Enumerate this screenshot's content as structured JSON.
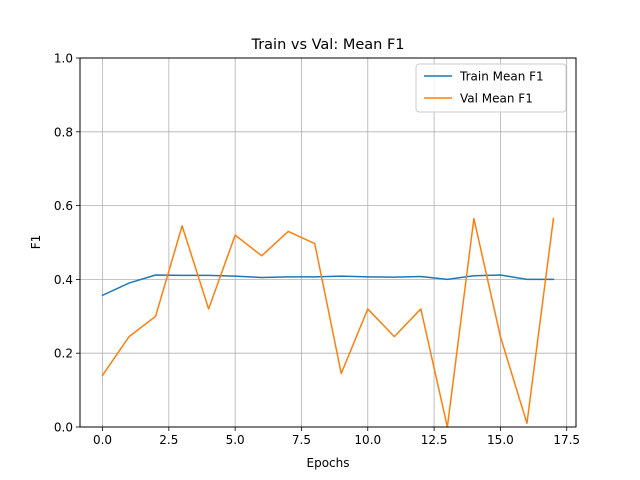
{
  "chart_data": {
    "type": "line",
    "title": "Train vs Val: Mean F1",
    "xlabel": "Epochs",
    "ylabel": "F1",
    "xlim": [
      -0.85,
      17.85
    ],
    "ylim": [
      0.0,
      1.0
    ],
    "xticks": [
      0.0,
      2.5,
      5.0,
      7.5,
      10.0,
      12.5,
      15.0,
      17.5
    ],
    "xtick_labels": [
      "0.0",
      "2.5",
      "5.0",
      "7.5",
      "10.0",
      "12.5",
      "15.0",
      "17.5"
    ],
    "yticks": [
      0.0,
      0.2,
      0.4,
      0.6,
      0.8,
      1.0
    ],
    "ytick_labels": [
      "0.0",
      "0.2",
      "0.4",
      "0.6",
      "0.8",
      "1.0"
    ],
    "grid": true,
    "legend_position": "top-right",
    "x": [
      0,
      1,
      2,
      3,
      4,
      5,
      6,
      7,
      8,
      9,
      10,
      11,
      12,
      13,
      14,
      15,
      16,
      17
    ],
    "series": [
      {
        "name": "Train Mean F1",
        "color": "#1f77b4",
        "values": [
          0.357,
          0.39,
          0.412,
          0.411,
          0.411,
          0.409,
          0.405,
          0.407,
          0.407,
          0.409,
          0.407,
          0.406,
          0.408,
          0.4,
          0.41,
          0.412,
          0.4,
          0.4
        ]
      },
      {
        "name": "Val Mean F1",
        "color": "#ff7f0e",
        "values": [
          0.14,
          0.245,
          0.3,
          0.545,
          0.32,
          0.52,
          0.464,
          0.53,
          0.497,
          0.145,
          0.32,
          0.245,
          0.32,
          0.0,
          0.565,
          0.245,
          0.01,
          0.565
        ]
      }
    ]
  }
}
